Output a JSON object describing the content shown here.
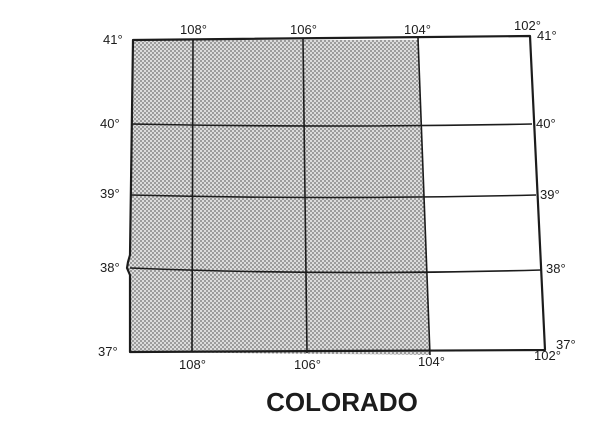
{
  "map": {
    "title": "COLORADO",
    "latitude_labels": [
      "41°",
      "40°",
      "39°",
      "38°",
      "37°"
    ],
    "longitude_labels_top": [
      "108°",
      "106°",
      "104°",
      "102°"
    ],
    "longitude_labels_bottom": [
      "108°",
      "106°",
      "104°",
      "102°"
    ],
    "shaded_region": "western Colorado, from the western border to 104° longitude",
    "colors": {
      "ink": "#1c1c1c",
      "shade": "#d9d9d9",
      "stipple": "#7a7a7a",
      "background": "#ffffff"
    }
  }
}
